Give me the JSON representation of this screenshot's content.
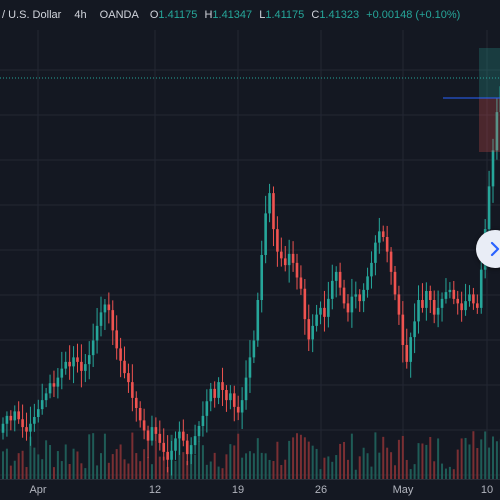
{
  "legend": {
    "symbol": "/ U.S. Dollar",
    "interval": "4h",
    "broker": "OANDA",
    "o_label": "O",
    "o_value": "1.41175",
    "h_label": "H",
    "h_value": "1.41347",
    "l_label": "L",
    "l_value": "1.41175",
    "c_label": "C",
    "c_value": "1.41323",
    "change": "+0.00148 (+0.10%)"
  },
  "time_axis": {
    "labels": [
      "Apr",
      "12",
      "19",
      "26",
      "May",
      "10"
    ]
  },
  "colors": {
    "background": "#141822",
    "grid": "#232733",
    "up": "#26a69a",
    "down": "#ef5350",
    "price_line": "#26a69a",
    "position_line": "#2962ff"
  },
  "icons": {
    "scroll_button": "chevron-right-icon"
  },
  "chart_data": {
    "type": "candlestick",
    "series": [
      {
        "name": "price",
        "values": [
          1.3825,
          1.3832,
          1.3828,
          1.3836,
          1.3829,
          1.3822,
          1.3818,
          1.3825,
          1.3831,
          1.3838,
          1.3846,
          1.3852,
          1.3861,
          1.3858,
          1.3866,
          1.3874,
          1.388,
          1.3876,
          1.3884,
          1.388,
          1.3872,
          1.3878,
          1.3886,
          1.3899,
          1.3912,
          1.3924,
          1.3931,
          1.3926,
          1.3908,
          1.3892,
          1.3881,
          1.387,
          1.3862,
          1.3848,
          1.3839,
          1.3828,
          1.3819,
          1.381,
          1.3822,
          1.3816,
          1.3808,
          1.38,
          1.3793,
          1.3801,
          1.3812,
          1.3818,
          1.381,
          1.3798,
          1.3806,
          1.3814,
          1.3823,
          1.3832,
          1.3845,
          1.3856,
          1.3848,
          1.3862,
          1.3855,
          1.3846,
          1.3852,
          1.384,
          1.3835,
          1.3846,
          1.3866,
          1.3884,
          1.3899,
          1.3935,
          1.3975,
          1.4012,
          1.403,
          1.3998,
          1.3978,
          1.3972,
          1.3966,
          1.3976,
          1.3968,
          1.3955,
          1.3945,
          1.3918,
          1.39,
          1.3912,
          1.3922,
          1.3928,
          1.392,
          1.3936,
          1.3952,
          1.396,
          1.3946,
          1.3932,
          1.3924,
          1.3938,
          1.394,
          1.3934,
          1.3944,
          1.3956,
          1.3968,
          1.3986,
          1.3996,
          1.3991,
          1.3978,
          1.396,
          1.394,
          1.3922,
          1.3895,
          1.388,
          1.3902,
          1.3916,
          1.3935,
          1.3928,
          1.3943,
          1.3935,
          1.3922,
          1.3928,
          1.3936,
          1.3942,
          1.3944,
          1.3936,
          1.3932,
          1.3926,
          1.3934,
          1.394,
          1.3932,
          1.3928,
          1.3962,
          1.3998,
          1.4036,
          1.4068,
          1.4102,
          1.4125,
          1.4132
        ]
      }
    ],
    "last_price": 1.41323,
    "ylim": [
      1.3775,
      1.4175
    ],
    "xlabels": [
      "Apr",
      "12",
      "19",
      "26",
      "May",
      "10"
    ]
  }
}
